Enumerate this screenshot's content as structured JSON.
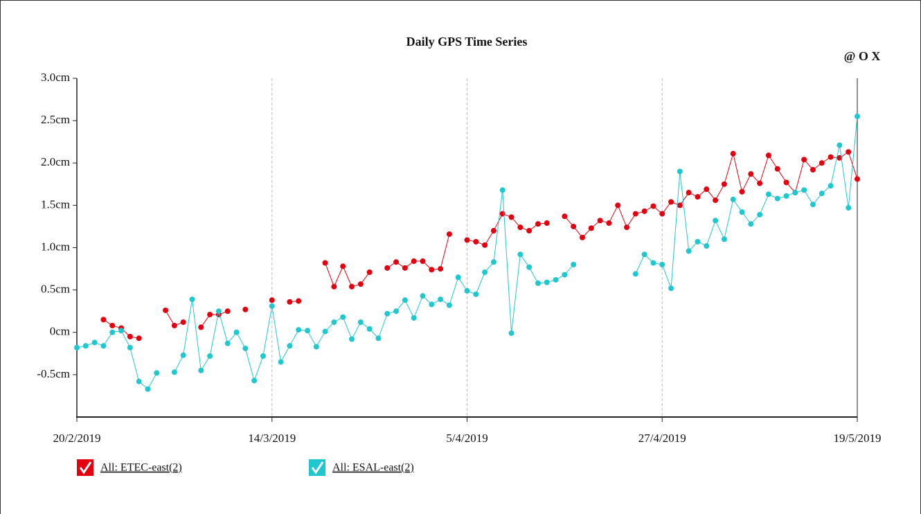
{
  "chart_data": {
    "type": "line",
    "title": "Daily GPS Time Series",
    "toolbar": "@ O X",
    "x": [
      "2019-02-20",
      "2019-02-21",
      "2019-02-22",
      "2019-02-23",
      "2019-02-24",
      "2019-02-25",
      "2019-02-26",
      "2019-02-27",
      "2019-02-28",
      "2019-03-01",
      "2019-03-02",
      "2019-03-03",
      "2019-03-04",
      "2019-03-05",
      "2019-03-06",
      "2019-03-07",
      "2019-03-08",
      "2019-03-09",
      "2019-03-10",
      "2019-03-11",
      "2019-03-12",
      "2019-03-13",
      "2019-03-14",
      "2019-03-15",
      "2019-03-16",
      "2019-03-17",
      "2019-03-18",
      "2019-03-19",
      "2019-03-20",
      "2019-03-21",
      "2019-03-22",
      "2019-03-23",
      "2019-03-24",
      "2019-03-25",
      "2019-03-26",
      "2019-03-27",
      "2019-03-28",
      "2019-03-29",
      "2019-03-30",
      "2019-03-31",
      "2019-04-01",
      "2019-04-02",
      "2019-04-03",
      "2019-04-04",
      "2019-04-05",
      "2019-04-06",
      "2019-04-07",
      "2019-04-08",
      "2019-04-09",
      "2019-04-10",
      "2019-04-11",
      "2019-04-12",
      "2019-04-13",
      "2019-04-14",
      "2019-04-15",
      "2019-04-16",
      "2019-04-17",
      "2019-04-18",
      "2019-04-19",
      "2019-04-20",
      "2019-04-21",
      "2019-04-22",
      "2019-04-23",
      "2019-04-24",
      "2019-04-25",
      "2019-04-26",
      "2019-04-27",
      "2019-04-28",
      "2019-04-29",
      "2019-04-30",
      "2019-05-01",
      "2019-05-02",
      "2019-05-03",
      "2019-05-04",
      "2019-05-05",
      "2019-05-06",
      "2019-05-07",
      "2019-05-08",
      "2019-05-09",
      "2019-05-10",
      "2019-05-11",
      "2019-05-12",
      "2019-05-13",
      "2019-05-14",
      "2019-05-15",
      "2019-05-16",
      "2019-05-17",
      "2019-05-18",
      "2019-05-19"
    ],
    "series": [
      {
        "name": "All: ETEC-east(2)",
        "color": "#e3000f",
        "values": [
          null,
          null,
          null,
          0.15,
          0.08,
          0.05,
          -0.05,
          -0.07,
          null,
          null,
          0.26,
          0.08,
          0.12,
          null,
          0.06,
          0.21,
          0.21,
          0.25,
          null,
          0.27,
          null,
          null,
          0.38,
          null,
          0.36,
          0.37,
          null,
          null,
          0.82,
          0.54,
          0.78,
          0.54,
          0.57,
          0.71,
          null,
          0.76,
          0.83,
          0.76,
          0.84,
          0.84,
          0.74,
          0.75,
          1.16,
          null,
          1.09,
          1.07,
          1.03,
          1.2,
          1.4,
          1.36,
          1.24,
          1.2,
          1.28,
          1.29,
          null,
          1.37,
          1.25,
          1.12,
          1.23,
          1.32,
          1.29,
          1.5,
          1.24,
          1.4,
          1.43,
          1.49,
          1.4,
          1.54,
          1.5,
          1.65,
          1.6,
          1.69,
          1.56,
          1.75,
          2.11,
          1.66,
          1.87,
          1.76,
          2.09,
          1.93,
          1.77,
          1.65,
          2.04,
          1.92,
          2.0,
          2.07,
          2.06,
          2.13,
          1.81
        ]
      },
      {
        "name": "All: ESAL-east(2)",
        "color": "#1fc8cf",
        "values": [
          -0.18,
          -0.16,
          -0.12,
          -0.16,
          0.0,
          0.02,
          -0.18,
          -0.58,
          -0.67,
          -0.48,
          null,
          -0.47,
          -0.27,
          0.39,
          -0.45,
          -0.28,
          0.25,
          -0.13,
          0.0,
          -0.19,
          -0.57,
          -0.28,
          0.31,
          -0.35,
          -0.16,
          0.03,
          0.02,
          -0.17,
          0.01,
          0.12,
          0.18,
          -0.08,
          0.12,
          0.04,
          -0.07,
          0.22,
          0.25,
          0.38,
          0.17,
          0.43,
          0.33,
          0.39,
          0.32,
          0.65,
          0.49,
          0.45,
          0.71,
          0.83,
          1.68,
          -0.01,
          0.92,
          0.77,
          0.58,
          0.59,
          0.62,
          0.68,
          0.8,
          null,
          null,
          null,
          null,
          null,
          null,
          0.69,
          0.92,
          0.82,
          0.8,
          0.52,
          1.9,
          0.96,
          1.07,
          1.02,
          1.32,
          1.1,
          1.57,
          1.42,
          1.28,
          1.39,
          1.63,
          1.58,
          1.61,
          1.65,
          1.68,
          1.51,
          1.64,
          1.73,
          2.21,
          1.47,
          2.55
        ]
      }
    ],
    "xlim": [
      "2019-02-20",
      "2019-05-19"
    ],
    "xticks": [
      {
        "value": "2019-02-20",
        "label": "20/2/2019"
      },
      {
        "value": "2019-03-14",
        "label": "14/3/2019"
      },
      {
        "value": "2019-04-05",
        "label": "5/4/2019"
      },
      {
        "value": "2019-04-27",
        "label": "27/4/2019"
      },
      {
        "value": "2019-05-19",
        "label": "19/5/2019"
      }
    ],
    "ylim": [
      -1.0,
      3.0
    ],
    "yticks": [
      {
        "value": -0.5,
        "label": "-0.5cm"
      },
      {
        "value": 0,
        "label": "0cm"
      },
      {
        "value": 0.5,
        "label": "0.5cm"
      },
      {
        "value": 1.0,
        "label": "1.0cm"
      },
      {
        "value": 1.5,
        "label": "1.5cm"
      },
      {
        "value": 2.0,
        "label": "2.0cm"
      },
      {
        "value": 2.5,
        "label": "2.5cm"
      },
      {
        "value": 3.0,
        "label": "3.0cm"
      }
    ],
    "grid": "x"
  }
}
